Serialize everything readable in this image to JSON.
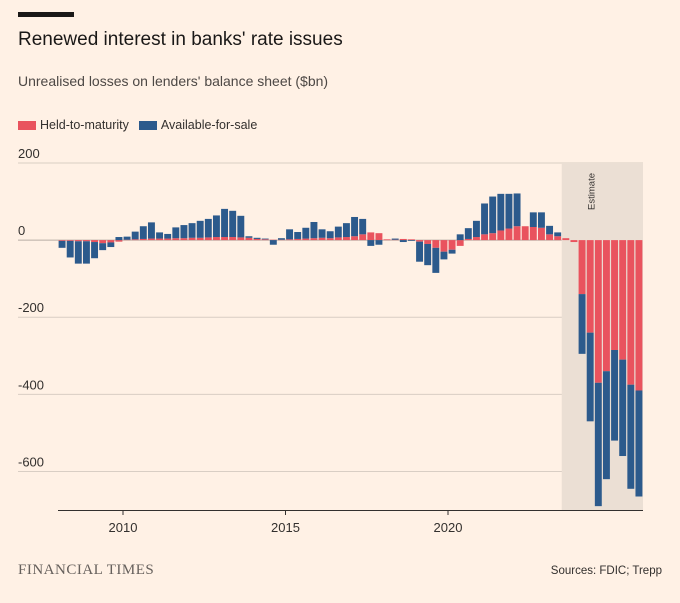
{
  "title": "Renewed interest in banks' rate issues",
  "subtitle": "Unrealised losses on lenders' balance sheet ($bn)",
  "brand": "FINANCIAL TIMES",
  "source": "Sources: FDIC; Trepp",
  "estimate_label": "Estimate",
  "colors": {
    "background": "#fff1e5",
    "held_to_maturity": "#e9535e",
    "available_for_sale": "#2c5a8c",
    "gridline": "#d9cec4",
    "estimate_band": "#ebdfd4"
  },
  "chart_data": {
    "type": "bar",
    "stacked": true,
    "x_unit": "quarter",
    "x_start": "2008Q1",
    "x_end": "2023Q4",
    "xticks": [
      2010,
      2015,
      2020
    ],
    "ylim": [
      -700,
      200
    ],
    "yticks": [
      200,
      0,
      -200,
      -400,
      -600
    ],
    "grid": true,
    "legend_position": "top-left",
    "estimate_from": "2023Q3",
    "series": [
      {
        "name": "Held-to-maturity",
        "color": "#e9535e",
        "values": [
          -2,
          -2,
          -3,
          -3,
          -5,
          -8,
          -6,
          -4,
          1,
          2,
          3,
          4,
          4,
          4,
          5,
          5,
          6,
          6,
          7,
          8,
          8,
          8,
          7,
          6,
          3,
          2,
          1,
          1,
          2,
          3,
          4,
          5,
          6,
          5,
          7,
          8,
          10,
          15,
          20,
          18,
          2,
          1,
          3,
          2,
          -4,
          -10,
          -20,
          -30,
          -25,
          -15,
          3,
          8,
          15,
          18,
          25,
          30,
          36,
          36,
          34,
          32,
          15,
          10,
          5,
          -5,
          -140,
          -240,
          -370,
          -340,
          -285,
          -310,
          -375,
          -390
        ]
      },
      {
        "name": "Available-for-sale",
        "color": "#2c5a8c",
        "values": [
          -18,
          -43,
          -58,
          -58,
          -42,
          -18,
          -12,
          8,
          8,
          20,
          33,
          42,
          16,
          12,
          28,
          34,
          38,
          44,
          48,
          56,
          73,
          68,
          56,
          4,
          3,
          2,
          -12,
          4,
          26,
          18,
          28,
          42,
          22,
          18,
          28,
          36,
          50,
          40,
          -15,
          -12,
          0,
          3,
          -5,
          -2,
          -52,
          -55,
          -65,
          -20,
          -10,
          15,
          28,
          42,
          80,
          95,
          95,
          90,
          85,
          0,
          38,
          40,
          22,
          10,
          0,
          0,
          -155,
          -230,
          -320,
          -280,
          -235,
          -250,
          -270,
          -275
        ]
      }
    ]
  }
}
